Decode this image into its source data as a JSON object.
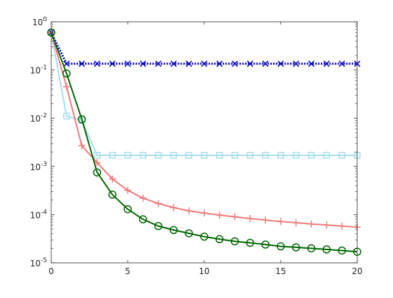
{
  "chart_data": {
    "type": "line",
    "title": "",
    "xlabel": "",
    "ylabel": "",
    "xscale": "linear",
    "yscale": "log",
    "xlim": [
      0,
      20
    ],
    "ylim": [
      1e-05,
      1
    ],
    "grid": false,
    "legend": "none",
    "xticks": [
      0,
      5,
      10,
      15,
      20
    ],
    "xtick_labels": [
      "0",
      "5",
      "10",
      "15",
      "20"
    ],
    "yticks": [
      1e-05,
      0.0001,
      0.001,
      0.01,
      0.1,
      1
    ],
    "ytick_labels": [
      {
        "base": "10",
        "exp": "-5"
      },
      {
        "base": "10",
        "exp": "-4"
      },
      {
        "base": "10",
        "exp": "-3"
      },
      {
        "base": "10",
        "exp": "-2"
      },
      {
        "base": "10",
        "exp": "-1"
      },
      {
        "base": "10",
        "exp": "0"
      }
    ],
    "series": [
      {
        "color": "#0000c0",
        "line": "dotted",
        "marker": "x",
        "x": [
          0,
          1,
          2,
          3,
          4,
          5,
          6,
          7,
          8,
          9,
          10,
          11,
          12,
          13,
          14,
          15,
          16,
          17,
          18,
          19,
          20
        ],
        "y": [
          0.6,
          0.135,
          0.135,
          0.135,
          0.135,
          0.135,
          0.135,
          0.135,
          0.135,
          0.135,
          0.135,
          0.135,
          0.135,
          0.135,
          0.135,
          0.135,
          0.135,
          0.135,
          0.135,
          0.135,
          0.135
        ]
      },
      {
        "color": "#a6dcf2",
        "line": "solid",
        "marker": "square",
        "x": [
          0,
          1,
          2,
          3,
          4,
          5,
          6,
          7,
          8,
          9,
          10,
          11,
          12,
          13,
          14,
          15,
          16,
          17,
          18,
          19,
          20
        ],
        "y": [
          0.6,
          0.011,
          0.009,
          0.0017,
          0.0017,
          0.0017,
          0.0017,
          0.0017,
          0.0017,
          0.0017,
          0.0017,
          0.0017,
          0.0017,
          0.0017,
          0.0017,
          0.0017,
          0.0017,
          0.0017,
          0.0017,
          0.0017,
          0.0017
        ]
      },
      {
        "color": "#f07878",
        "line": "solid",
        "marker": "plus",
        "x": [
          0,
          1,
          2,
          3,
          4,
          5,
          6,
          7,
          8,
          9,
          10,
          11,
          12,
          13,
          14,
          15,
          16,
          17,
          18,
          19,
          20
        ],
        "y": [
          0.6,
          0.045,
          0.0027,
          0.0012,
          0.00055,
          0.00032,
          0.00022,
          0.00017,
          0.00014,
          0.00012,
          0.000108,
          9.8e-05,
          9e-05,
          8.3e-05,
          7.7e-05,
          7.2e-05,
          6.8e-05,
          6.4e-05,
          6.1e-05,
          5.8e-05,
          5.5e-05
        ]
      },
      {
        "color": "#006400",
        "line": "solid",
        "marker": "circle",
        "x": [
          0,
          1,
          2,
          3,
          4,
          5,
          6,
          7,
          8,
          9,
          10,
          11,
          12,
          13,
          14,
          15,
          16,
          17,
          18,
          19,
          20
        ],
        "y": [
          0.6,
          0.085,
          0.0095,
          0.00075,
          0.00026,
          0.00013,
          8e-05,
          5.8e-05,
          4.8e-05,
          4.1e-05,
          3.5e-05,
          3.1e-05,
          2.8e-05,
          2.6e-05,
          2.4e-05,
          2.2e-05,
          2.1e-05,
          2e-05,
          1.9e-05,
          1.8e-05,
          1.7e-05
        ]
      }
    ]
  }
}
